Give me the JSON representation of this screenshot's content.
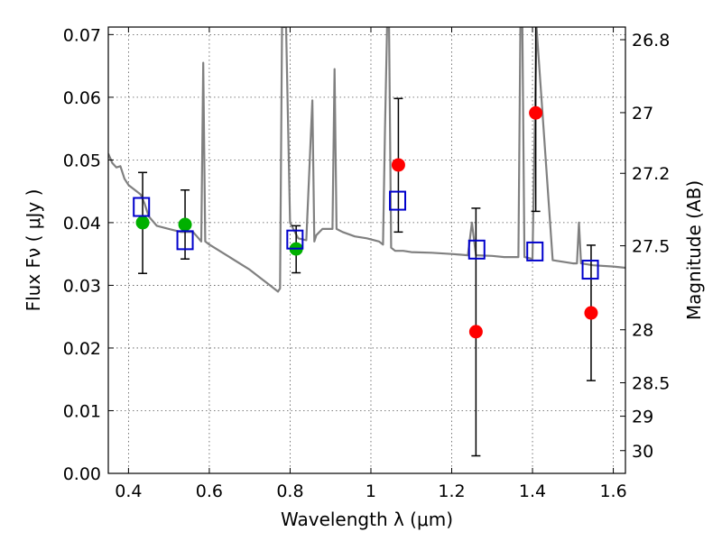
{
  "chart_data": {
    "type": "scatter",
    "xlabel": "Wavelength  λ (μm)",
    "ylabel": "Flux  Fν  ( μJy )",
    "y2label": "Magnitude (AB)",
    "xlim": [
      0.35,
      1.63
    ],
    "ylim": [
      0.0,
      0.0712
    ],
    "grid": true,
    "x_ticks": [
      "0.4",
      "0.6",
      "0.8",
      "1",
      "1.2",
      "1.4",
      "1.6"
    ],
    "y_ticks": [
      "0.00",
      "0.01",
      "0.02",
      "0.03",
      "0.04",
      "0.05",
      "0.06",
      "0.07"
    ],
    "y2_ticks": [
      "26.8",
      "27",
      "27.2",
      "27.5",
      "28",
      "28.5",
      "29",
      "30"
    ],
    "series": [
      {
        "marker": "circle",
        "color": "#00b000",
        "x": [
          0.435,
          0.54,
          0.815
        ],
        "y": [
          0.04,
          0.0397,
          0.0358
        ],
        "yerr_low": [
          0.0319,
          0.0342,
          0.032
        ],
        "yerr_high": [
          0.048,
          0.0452,
          0.0395
        ]
      },
      {
        "marker": "circle",
        "color": "#ff0000",
        "x": [
          1.068,
          1.26,
          1.408,
          1.545
        ],
        "y": [
          0.0492,
          0.0226,
          0.0575,
          0.0256
        ],
        "yerr_low": [
          0.0385,
          0.0028,
          0.0418,
          0.0148
        ],
        "yerr_high": [
          0.0598,
          0.0423,
          0.0712,
          0.0364
        ]
      },
      {
        "marker": "open-square",
        "color": "#0000cc",
        "x": [
          0.432,
          0.54,
          0.812,
          1.066,
          1.262,
          1.406,
          1.543
        ],
        "y": [
          0.0425,
          0.0372,
          0.0373,
          0.0435,
          0.0357,
          0.0354,
          0.0325
        ]
      },
      {
        "style": "line",
        "color": "#808080",
        "x": [
          0.35,
          0.36,
          0.37,
          0.38,
          0.39,
          0.4,
          0.41,
          0.42,
          0.43,
          0.44,
          0.45,
          0.47,
          0.5,
          0.53,
          0.56,
          0.58,
          0.585,
          0.59,
          0.6,
          0.65,
          0.7,
          0.73,
          0.75,
          0.76,
          0.77,
          0.775,
          0.78,
          0.785,
          0.79,
          0.8,
          0.82,
          0.84,
          0.855,
          0.86,
          0.865,
          0.88,
          0.905,
          0.91,
          0.915,
          0.93,
          0.96,
          0.99,
          1.02,
          1.03,
          1.035,
          1.04,
          1.045,
          1.05,
          1.06,
          1.08,
          1.1,
          1.15,
          1.2,
          1.24,
          1.25,
          1.26,
          1.3,
          1.33,
          1.35,
          1.365,
          1.37,
          1.375,
          1.38,
          1.4,
          1.41,
          1.45,
          1.5,
          1.51,
          1.515,
          1.52,
          1.55,
          1.6,
          1.63
        ],
        "y": [
          0.051,
          0.0495,
          0.0488,
          0.049,
          0.047,
          0.046,
          0.0455,
          0.045,
          0.0445,
          0.043,
          0.041,
          0.0395,
          0.039,
          0.0385,
          0.0385,
          0.037,
          0.0655,
          0.037,
          0.0365,
          0.0345,
          0.0325,
          0.031,
          0.03,
          0.0295,
          0.029,
          0.0295,
          0.0712,
          0.0712,
          0.0712,
          0.04,
          0.0375,
          0.0372,
          0.0595,
          0.037,
          0.038,
          0.039,
          0.039,
          0.0645,
          0.039,
          0.0385,
          0.0378,
          0.0375,
          0.037,
          0.0365,
          0.055,
          0.0712,
          0.0712,
          0.036,
          0.0355,
          0.0355,
          0.0353,
          0.0352,
          0.035,
          0.0348,
          0.04,
          0.0348,
          0.0347,
          0.0345,
          0.0345,
          0.0345,
          0.0712,
          0.0712,
          0.0345,
          0.0342,
          0.0712,
          0.034,
          0.0335,
          0.0335,
          0.04,
          0.0335,
          0.0332,
          0.033,
          0.0328
        ]
      }
    ]
  }
}
